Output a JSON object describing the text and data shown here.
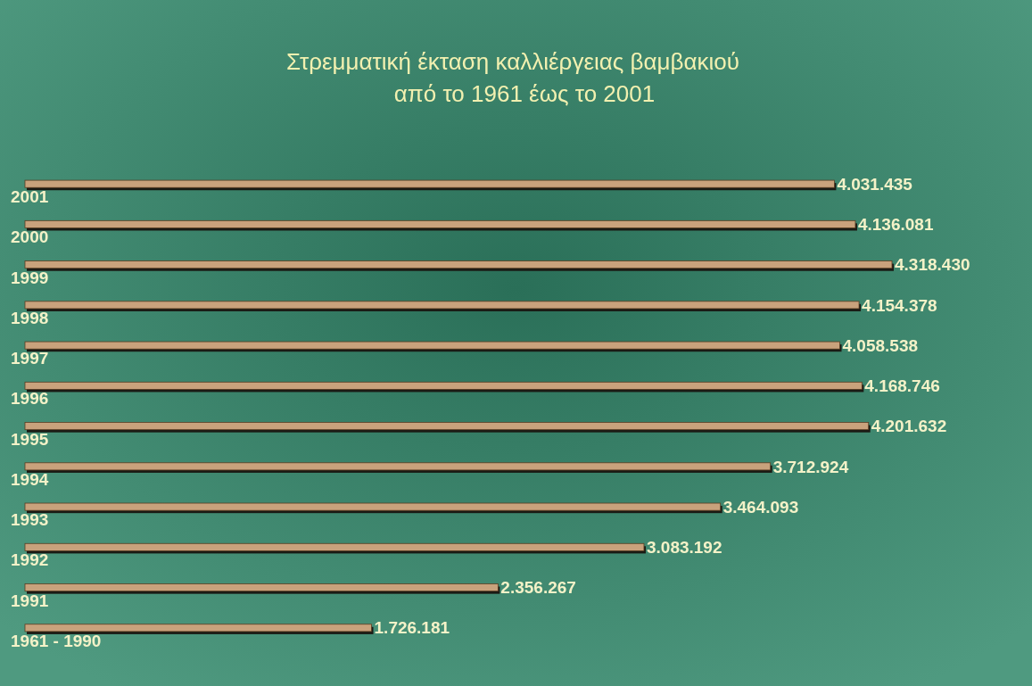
{
  "chart_data": {
    "type": "bar",
    "orientation": "horizontal",
    "title": "Στρεμματική έκταση καλλιέργειας βαμβακιού",
    "subtitle": "από το 1961 έως το 2001",
    "categories": [
      "2001",
      "2000",
      "1999",
      "1998",
      "1997",
      "1996",
      "1995",
      "1994",
      "1993",
      "1992",
      "1991",
      "1961 - 1990"
    ],
    "values": [
      4031435,
      4136081,
      4318430,
      4154378,
      4058538,
      4168746,
      4201632,
      3712924,
      3464093,
      3083192,
      2356267,
      1726181
    ],
    "value_labels": [
      "4.031.435",
      "4.136.081",
      "4.318.430",
      "4.154.378",
      "4.058.538",
      "4.168.746",
      "4.201.632",
      "3.712.924",
      "3.464.093",
      "3.083.192",
      "2.356.267",
      "1.726.181"
    ],
    "color": "#c9a27c"
  }
}
